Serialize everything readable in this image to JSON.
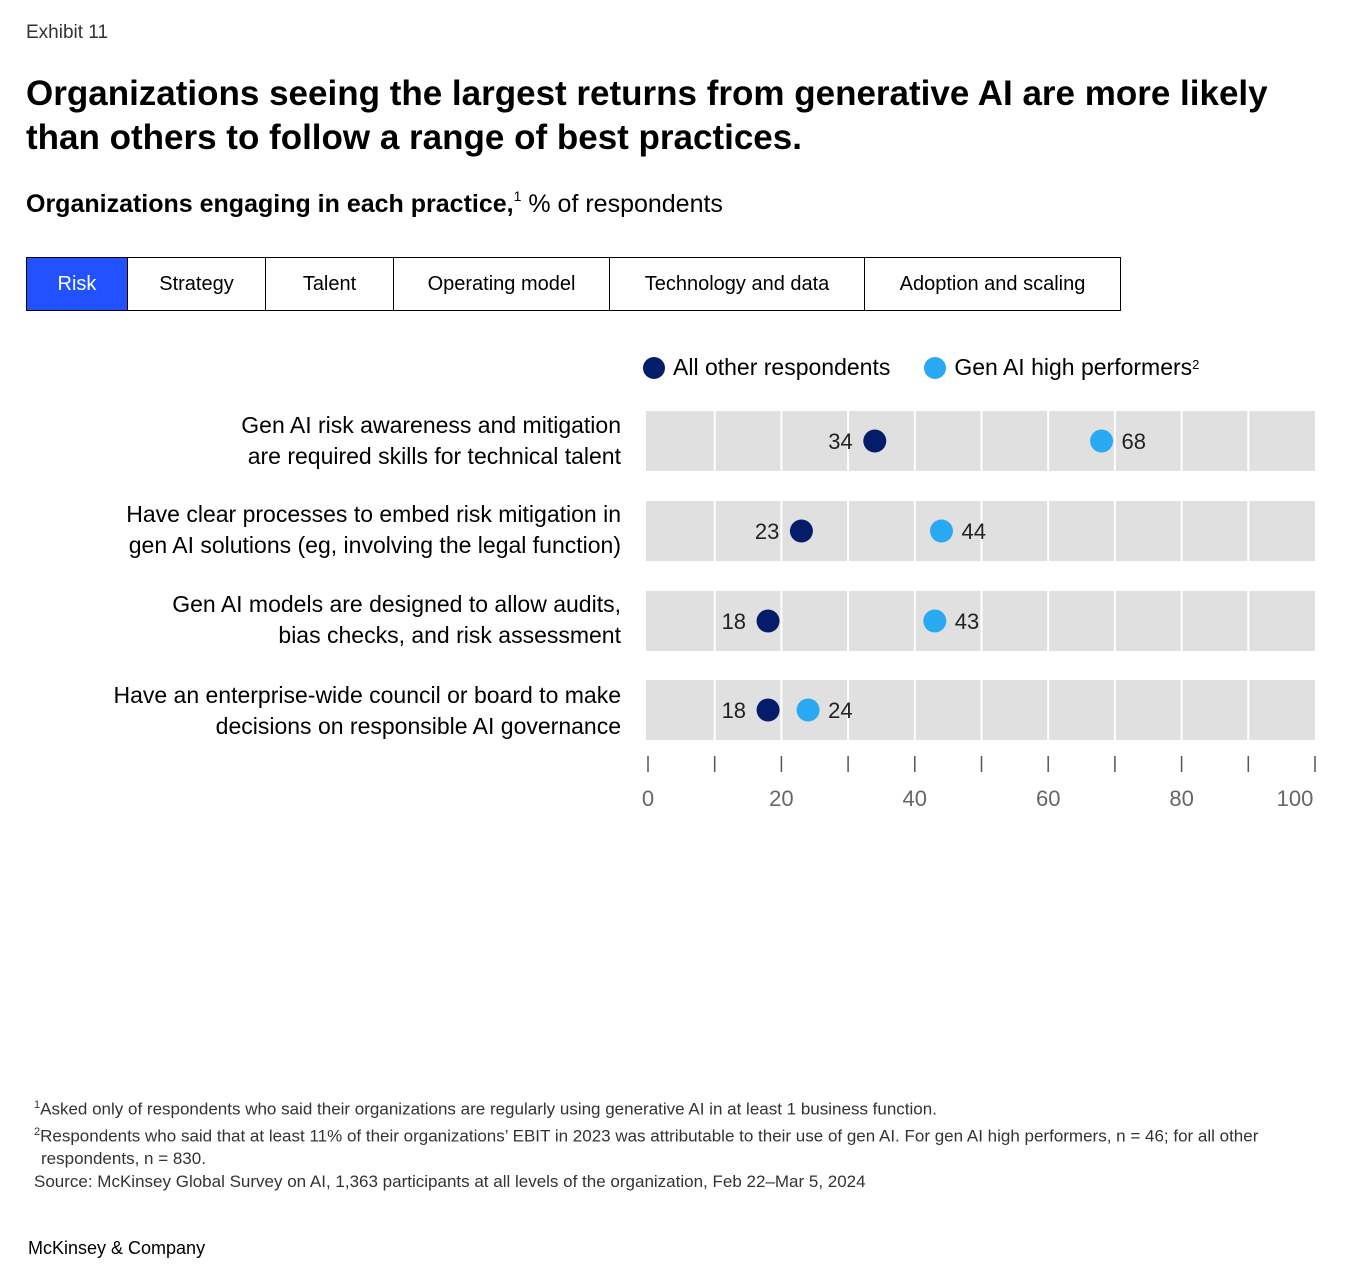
{
  "exhibit": "Exhibit 11",
  "title": "Organizations seeing the largest returns from generative AI are more likely than others to follow a range of best practices.",
  "subtitle": {
    "bold": "Organizations engaging in each practice,",
    "footnote_marker": "1",
    "rest": " % of respondents"
  },
  "tabs": [
    {
      "label": "Risk",
      "active": true
    },
    {
      "label": "Strategy",
      "active": false
    },
    {
      "label": "Talent",
      "active": false
    },
    {
      "label": "Operating model",
      "active": false
    },
    {
      "label": "Technology and data",
      "active": false
    },
    {
      "label": "Adoption and scaling",
      "active": false
    }
  ],
  "legend": {
    "others": "All other respondents",
    "high": "Gen AI high performers",
    "high_marker": "2"
  },
  "colors": {
    "others": "#051c6b",
    "high": "#28a9f1",
    "accent": "#2251ff",
    "band": "#e0e0e0"
  },
  "chart_data": {
    "type": "dot",
    "xlim": [
      0,
      100
    ],
    "xticks": [
      0,
      20,
      40,
      60,
      80,
      100
    ],
    "series": [
      {
        "name": "All other respondents",
        "values": [
          34,
          23,
          18,
          18
        ]
      },
      {
        "name": "Gen AI high performers",
        "values": [
          68,
          44,
          43,
          24
        ]
      }
    ],
    "categories": [
      [
        "Gen AI risk awareness and mitigation",
        "are required skills for technical talent"
      ],
      [
        "Have clear processes to embed risk mitigation in",
        "gen AI solutions (eg, involving the legal function)"
      ],
      [
        "Gen AI models are designed to allow audits,",
        "bias checks, and risk assessment"
      ],
      [
        "Have an enterprise-wide council or board to make",
        "decisions on responsible AI governance"
      ]
    ]
  },
  "footnotes": {
    "f1_marker": "1",
    "f1": "Asked only of respondents who said their organizations are regularly using generative AI in at least 1 business function.",
    "f2_marker": "2",
    "f2": "Respondents who said that at least 11% of their organizations’ EBIT in 2023 was attributable to their use of gen AI. For gen AI high performers, n = 46; for all other respondents, n = 830.",
    "source": "Source: McKinsey Global Survey on AI, 1,363 participants at all levels of the organization, Feb 22–Mar 5, 2024"
  },
  "brand": "McKinsey & Company"
}
